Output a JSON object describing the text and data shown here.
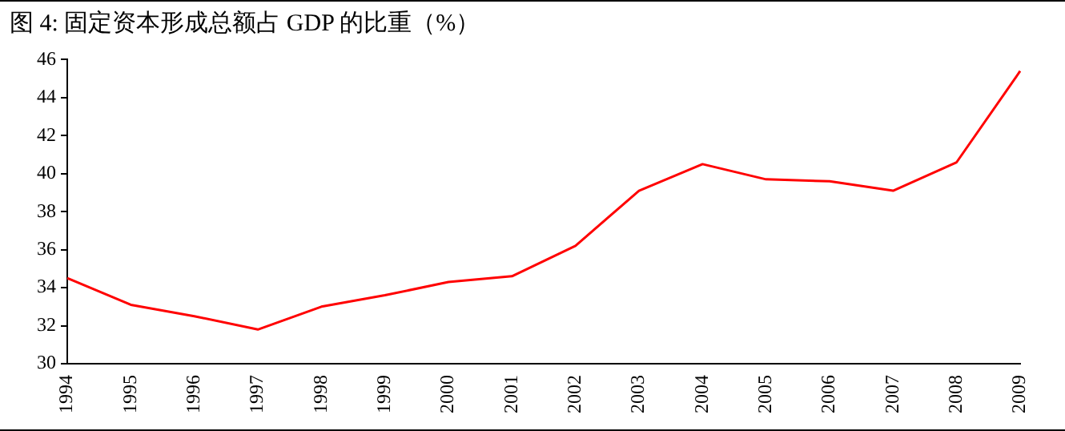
{
  "chart_data": {
    "type": "line",
    "title": "图 4:  固定资本形成总额占 GDP 的比重（%）",
    "categories": [
      "1994",
      "1995",
      "1996",
      "1997",
      "1998",
      "1999",
      "2000",
      "2001",
      "2002",
      "2003",
      "2004",
      "2005",
      "2006",
      "2007",
      "2008",
      "2009"
    ],
    "series": [
      {
        "color": "#ff0000",
        "values": [
          34.5,
          33.1,
          32.5,
          31.8,
          33.0,
          33.6,
          34.3,
          34.6,
          36.2,
          39.1,
          40.5,
          39.7,
          39.6,
          39.1,
          40.6,
          45.4
        ]
      }
    ],
    "ylim": [
      30,
      46
    ],
    "yticks": [
      30,
      32,
      34,
      36,
      38,
      40,
      42,
      44,
      46
    ],
    "grid": false,
    "legend": false,
    "marker": "none",
    "line_style": "solid"
  }
}
